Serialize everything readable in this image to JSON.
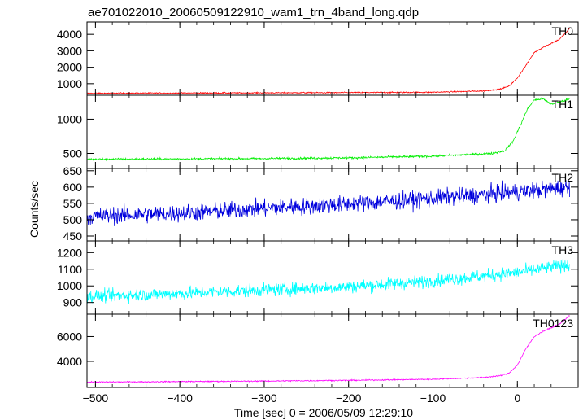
{
  "chart_data": {
    "type": "line",
    "title": "ae701022010_20060509122910_wam1_trn_4band_long.qdp",
    "xlabel": "Time [sec] 0 = 2006/05/09 12:29:10",
    "ylabel": "Counts/sec",
    "xlim": [
      -510,
      72
    ],
    "x_ticks": [
      -500,
      -400,
      -300,
      -200,
      -100,
      0
    ],
    "x_tick_labels": [
      "−500",
      "−400",
      "−300",
      "−200",
      "−100",
      "0"
    ],
    "grid": false,
    "panels": [
      {
        "name": "TH0",
        "color": "#ff0000",
        "ylim": [
          300,
          4750
        ],
        "ticks": [
          1000,
          2000,
          3000,
          4000
        ],
        "tick_labels": [
          "1000",
          "2000",
          "3000",
          "4000"
        ],
        "profile_x": [
          -510,
          -400,
          -300,
          -200,
          -100,
          -40,
          -20,
          -10,
          0,
          10,
          20,
          30,
          40,
          50,
          62
        ],
        "profile_y": [
          420,
          430,
          445,
          460,
          480,
          560,
          680,
          850,
          1350,
          2100,
          2900,
          3200,
          3450,
          3700,
          4350
        ],
        "noise": 35
      },
      {
        "name": "TH1",
        "color": "#00ee00",
        "ylim": [
          280,
          1350
        ],
        "ticks": [
          500,
          1000
        ],
        "tick_labels": [
          "500",
          "1000"
        ],
        "profile_x": [
          -510,
          -400,
          -300,
          -200,
          -100,
          -30,
          -15,
          -5,
          5,
          12,
          20,
          30,
          40,
          50,
          62
        ],
        "profile_y": [
          415,
          420,
          425,
          435,
          460,
          500,
          540,
          680,
          950,
          1150,
          1280,
          1300,
          1220,
          1250,
          1300
        ],
        "noise": 15
      },
      {
        "name": "TH2",
        "color": "#0000dd",
        "ylim": [
          435,
          657
        ],
        "ticks": [
          450,
          500,
          550,
          600,
          650
        ],
        "tick_labels": [
          "450",
          "500",
          "550",
          "600",
          "650"
        ],
        "profile_x": [
          -510,
          -400,
          -300,
          -200,
          -100,
          0,
          62
        ],
        "profile_y": [
          510,
          520,
          535,
          548,
          565,
          585,
          600
        ],
        "noise": 26
      },
      {
        "name": "TH3",
        "color": "#00ffff",
        "ylim": [
          830,
          1270
        ],
        "ticks": [
          900,
          1000,
          1100,
          1200
        ],
        "tick_labels": [
          "900",
          "1000",
          "1100",
          "1200"
        ],
        "profile_x": [
          -510,
          -400,
          -300,
          -200,
          -100,
          0,
          62
        ],
        "profile_y": [
          935,
          955,
          975,
          995,
          1030,
          1080,
          1130
        ],
        "noise": 38
      },
      {
        "name": "TH0123",
        "color": "#ff00ff",
        "ylim": [
          1900,
          7800
        ],
        "ticks": [
          4000,
          6000
        ],
        "tick_labels": [
          "4000",
          "6000"
        ],
        "profile_x": [
          -510,
          -400,
          -300,
          -200,
          -100,
          -40,
          -20,
          -10,
          0,
          10,
          20,
          30,
          40,
          50,
          62
        ],
        "profile_y": [
          2330,
          2370,
          2410,
          2470,
          2560,
          2700,
          2850,
          3050,
          3700,
          5000,
          6000,
          6400,
          6700,
          7000,
          7700
        ],
        "noise": 45
      }
    ]
  }
}
